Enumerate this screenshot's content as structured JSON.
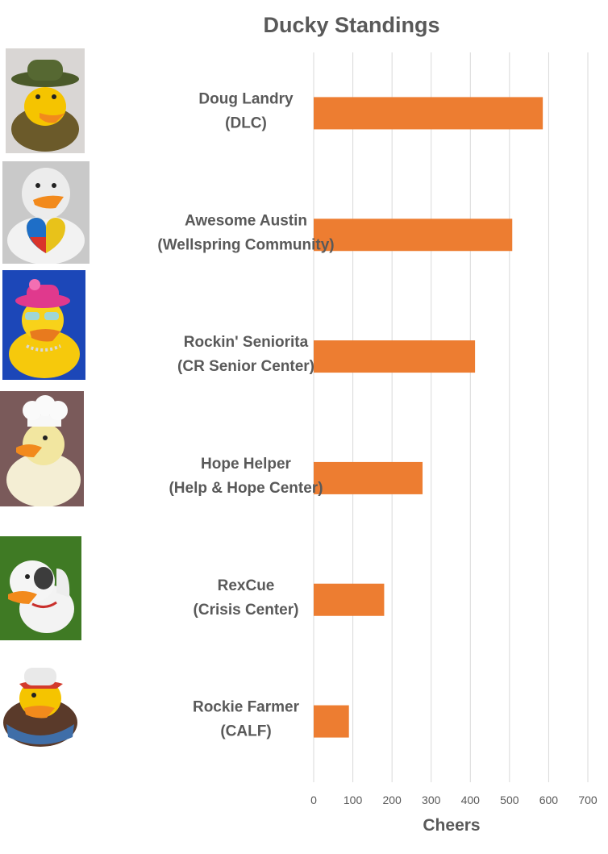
{
  "chart_data": {
    "type": "bar",
    "orientation": "horizontal",
    "title": "Ducky Standings",
    "xlabel": "Cheers",
    "ylabel": "",
    "xlim": [
      0,
      700
    ],
    "ticks": [
      "0",
      "100",
      "200",
      "300",
      "400",
      "500",
      "600",
      "700"
    ],
    "grid": true,
    "legend": "none",
    "bar_color": "#ED7D31",
    "categories": [
      [
        "Doug Landry",
        "(DLC)"
      ],
      [
        "Awesome Austin",
        "(Wellspring Community)"
      ],
      [
        "Rockin' Seniorita",
        "(CR Senior Center)"
      ],
      [
        "Hope Helper",
        "(Help & Hope Center)"
      ],
      [
        "RexCue",
        "(Crisis Center)"
      ],
      [
        "Rockie Farmer",
        "(CALF)"
      ]
    ],
    "values": [
      585,
      507,
      412,
      278,
      180,
      90
    ]
  },
  "photos": [
    {
      "icon": "duck-photo-safari-hat"
    },
    {
      "icon": "duck-photo-puzzle-heart"
    },
    {
      "icon": "duck-photo-pink-hat"
    },
    {
      "icon": "duck-photo-chef"
    },
    {
      "icon": "duck-photo-cow"
    },
    {
      "icon": "duck-photo-farmer"
    }
  ]
}
